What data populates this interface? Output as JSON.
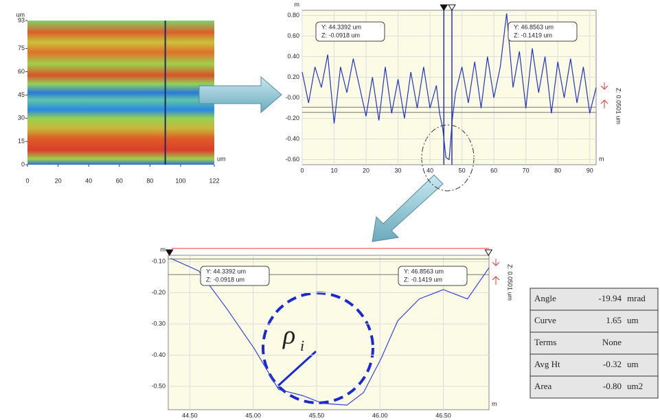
{
  "chart_data": [
    {
      "type": "heatmap",
      "x_label": "um",
      "y_label": "um",
      "xlim": [
        0,
        122
      ],
      "ylim": [
        0,
        93
      ],
      "xticks": [
        0,
        20,
        40,
        60,
        80,
        100,
        122
      ],
      "yticks": [
        0,
        15,
        30,
        45,
        60,
        75,
        93
      ],
      "cursor_x": 90,
      "cursor_color": "#1a2a6e"
    },
    {
      "type": "line",
      "x_label": "m",
      "y_label": "m",
      "color": "#2233cc",
      "xlim": [
        0,
        92
      ],
      "ylim": [
        -0.65,
        0.85
      ],
      "xticks": [
        0,
        10,
        20,
        30,
        40,
        50,
        60,
        70,
        80,
        90
      ],
      "yticks": [
        {
          "value": 0.8,
          "label": "0.80"
        },
        {
          "value": 0.6,
          "label": "0.60"
        },
        {
          "value": 0.4,
          "label": "0.40"
        },
        {
          "value": 0.2,
          "label": "0.20"
        },
        {
          "value": 0,
          "label": "-0.00"
        },
        {
          "value": -0.2,
          "label": "-0.20"
        },
        {
          "value": -0.4,
          "label": "-0.40"
        },
        {
          "value": -0.6,
          "label": "-0.60"
        }
      ],
      "x": [
        0,
        2,
        4,
        6,
        8,
        10,
        12,
        14,
        16,
        18,
        20,
        22,
        24,
        26,
        28,
        30,
        32,
        34,
        36,
        38,
        40,
        42,
        43,
        44,
        45,
        46,
        47,
        48,
        50,
        52,
        54,
        56,
        58,
        60,
        62,
        64,
        66,
        68,
        70,
        72,
        74,
        76,
        78,
        80,
        82,
        84,
        86,
        88,
        90,
        92
      ],
      "values": [
        0.25,
        -0.05,
        0.3,
        0.1,
        0.42,
        -0.25,
        0.3,
        0.05,
        0.38,
        0.1,
        -0.18,
        0.2,
        -0.22,
        0.3,
        -0.15,
        0.18,
        -0.2,
        0.25,
        -0.1,
        0.3,
        -0.1,
        0.12,
        -0.15,
        -0.3,
        -0.58,
        -0.6,
        -0.2,
        0.05,
        0.3,
        -0.05,
        0.35,
        -0.1,
        0.4,
        0.0,
        0.3,
        0.82,
        0.1,
        0.45,
        -0.1,
        0.48,
        0.05,
        0.4,
        -0.15,
        0.35,
        0.0,
        0.38,
        -0.05,
        0.3,
        -0.15,
        0.1
      ],
      "cursors_x": [
        44.3392,
        46.8563
      ],
      "cursors_z": [
        -0.0918,
        -0.1419
      ],
      "annotations": [
        [
          "Y: 44.3392 um",
          "Z: -0.0918 um"
        ],
        [
          "Y: 46.8563 um",
          "Z: -0.1419 um"
        ]
      ],
      "z_span_label": "Z: 0.0501 um"
    },
    {
      "type": "line",
      "x_label": "m",
      "y_label": "m",
      "color": "#3344dd",
      "xlim": [
        44.33,
        46.86
      ],
      "ylim": [
        -0.575,
        -0.08
      ],
      "xticks": [
        {
          "value": 44.5,
          "label": "44.50"
        },
        {
          "value": 45,
          "label": "45.00"
        },
        {
          "value": 45.5,
          "label": "45.50"
        },
        {
          "value": 46,
          "label": "46.00"
        },
        {
          "value": 46.5,
          "label": "46.50"
        }
      ],
      "yticks": [
        {
          "value": -0.1,
          "label": "-0.10"
        },
        {
          "value": -0.2,
          "label": "-0.20"
        },
        {
          "value": -0.3,
          "label": "-0.30"
        },
        {
          "value": -0.4,
          "label": "-0.40"
        },
        {
          "value": -0.5,
          "label": "-0.50"
        }
      ],
      "x": [
        44.35,
        44.57,
        44.79,
        45.01,
        45.2,
        45.39,
        45.55,
        45.74,
        45.87,
        46.01,
        46.14,
        46.31,
        46.5,
        46.69,
        46.86
      ],
      "values": [
        -0.09,
        -0.13,
        -0.25,
        -0.38,
        -0.51,
        -0.53,
        -0.555,
        -0.56,
        -0.52,
        -0.41,
        -0.29,
        -0.22,
        -0.19,
        -0.22,
        -0.12
      ],
      "cursors_x": [
        44.3392,
        46.8563
      ],
      "cursors_z": [
        -0.0918,
        -0.1419
      ],
      "annotations": [
        [
          "Y: 44.3392 um",
          "Z: -0.0918 um"
        ],
        [
          "Y: 46.8563 um",
          "Z: -0.1419 um"
        ]
      ],
      "z_span_label": "Z: 0.0501 um",
      "fit_symbol": "ρ",
      "fit_symbol_sub": "i"
    }
  ],
  "table": {
    "rows": [
      [
        "Angle",
        "-19.94",
        "mrad"
      ],
      [
        "Curve",
        "1.65",
        "um"
      ],
      [
        "Terms",
        "None",
        ""
      ],
      [
        "Avg Ht",
        "-0.32",
        "um"
      ],
      [
        "Area",
        "-0.80",
        "um2"
      ]
    ]
  }
}
